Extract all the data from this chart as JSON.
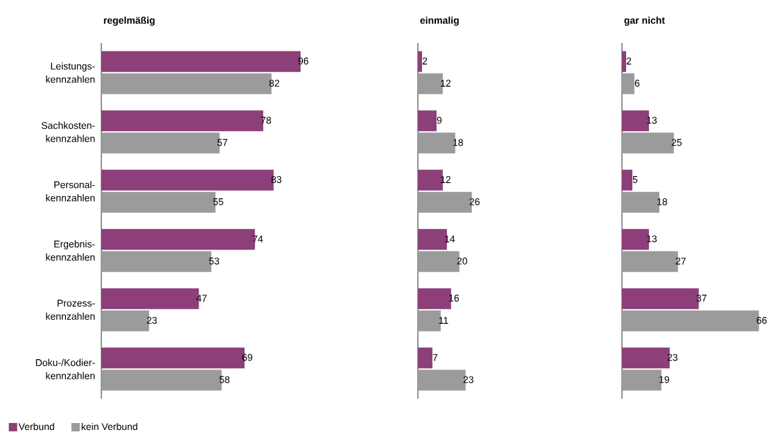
{
  "chart_data": [
    {
      "type": "bar",
      "orientation": "horizontal",
      "title": "regelmäßig",
      "categories": [
        "Leistungs-kennzahlen",
        "Sachkosten-kennzahlen",
        "Personal-kennzahlen",
        "Ergebnis-kennzahlen",
        "Prozess-kennzahlen",
        "Doku-/Kodier-kennzahlen"
      ],
      "data_labels": true,
      "tick_labels": "y",
      "legend": "bottom left",
      "series": [
        {
          "name": "Verbund",
          "color": "#8c3f78",
          "values": [
            96,
            78,
            83,
            74,
            47,
            69
          ]
        },
        {
          "name": "kein Verbund",
          "color": "#9b9b9b",
          "values": [
            82,
            57,
            55,
            53,
            23,
            58
          ]
        }
      ]
    },
    {
      "type": "bar",
      "orientation": "horizontal",
      "title": "einmalig",
      "data_labels": true,
      "tick_labels": false,
      "series": [
        {
          "color": "#8c3f78",
          "values": [
            2,
            9,
            12,
            14,
            16,
            7
          ]
        },
        {
          "color": "#9b9b9b",
          "values": [
            12,
            18,
            26,
            20,
            11,
            23
          ]
        }
      ]
    },
    {
      "type": "bar",
      "orientation": "horizontal",
      "title": "gar nicht",
      "data_labels": true,
      "tick_labels": false,
      "series": [
        {
          "color": "#8c3f78",
          "values": [
            2,
            13,
            5,
            13,
            37,
            23
          ]
        },
        {
          "color": "#9b9b9b",
          "values": [
            6,
            25,
            18,
            27,
            66,
            19
          ]
        }
      ]
    }
  ]
}
